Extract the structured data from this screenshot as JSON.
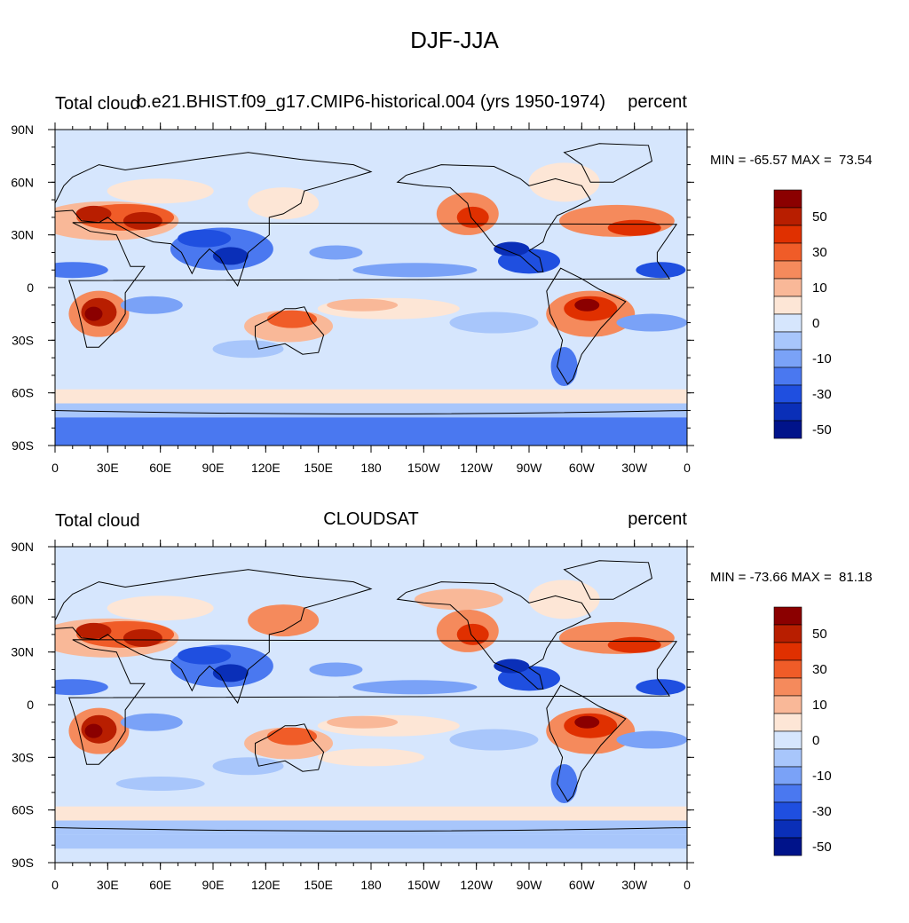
{
  "title": "DJF-JJA",
  "panels": [
    {
      "left_label": "Total cloud",
      "center_label": "b.e21.BHIST.f09_g17.CMIP6-historical.004 (yrs 1950-1974)",
      "right_label": "percent",
      "stats": "MIN = -65.57 MAX =  73.54"
    },
    {
      "left_label": "Total cloud",
      "center_label": "CLOUDSAT",
      "right_label": "percent",
      "stats": "MIN = -73.66 MAX =  81.18"
    }
  ],
  "lon_ticks": [
    "0",
    "30E",
    "60E",
    "90E",
    "120E",
    "150E",
    "180",
    "150W",
    "120W",
    "90W",
    "60W",
    "30W",
    "0"
  ],
  "lat_ticks": [
    "90N",
    "60N",
    "30N",
    "0",
    "30S",
    "60S",
    "90S"
  ],
  "colorbar": {
    "colors": [
      "#8b0000",
      "#b81e00",
      "#e03000",
      "#f05c28",
      "#f58a5c",
      "#f9b898",
      "#fde6d6",
      "#d6e6fd",
      "#a8c6fb",
      "#7aa2f7",
      "#4a78f0",
      "#1f4fe0",
      "#0a2fb8",
      "#00138a"
    ],
    "labels": [
      "50",
      "30",
      "10",
      "0",
      "-10",
      "-30",
      "-50"
    ]
  },
  "map_colors": {
    "ocean": "#d6e6fd",
    "coast": "#000000"
  }
}
